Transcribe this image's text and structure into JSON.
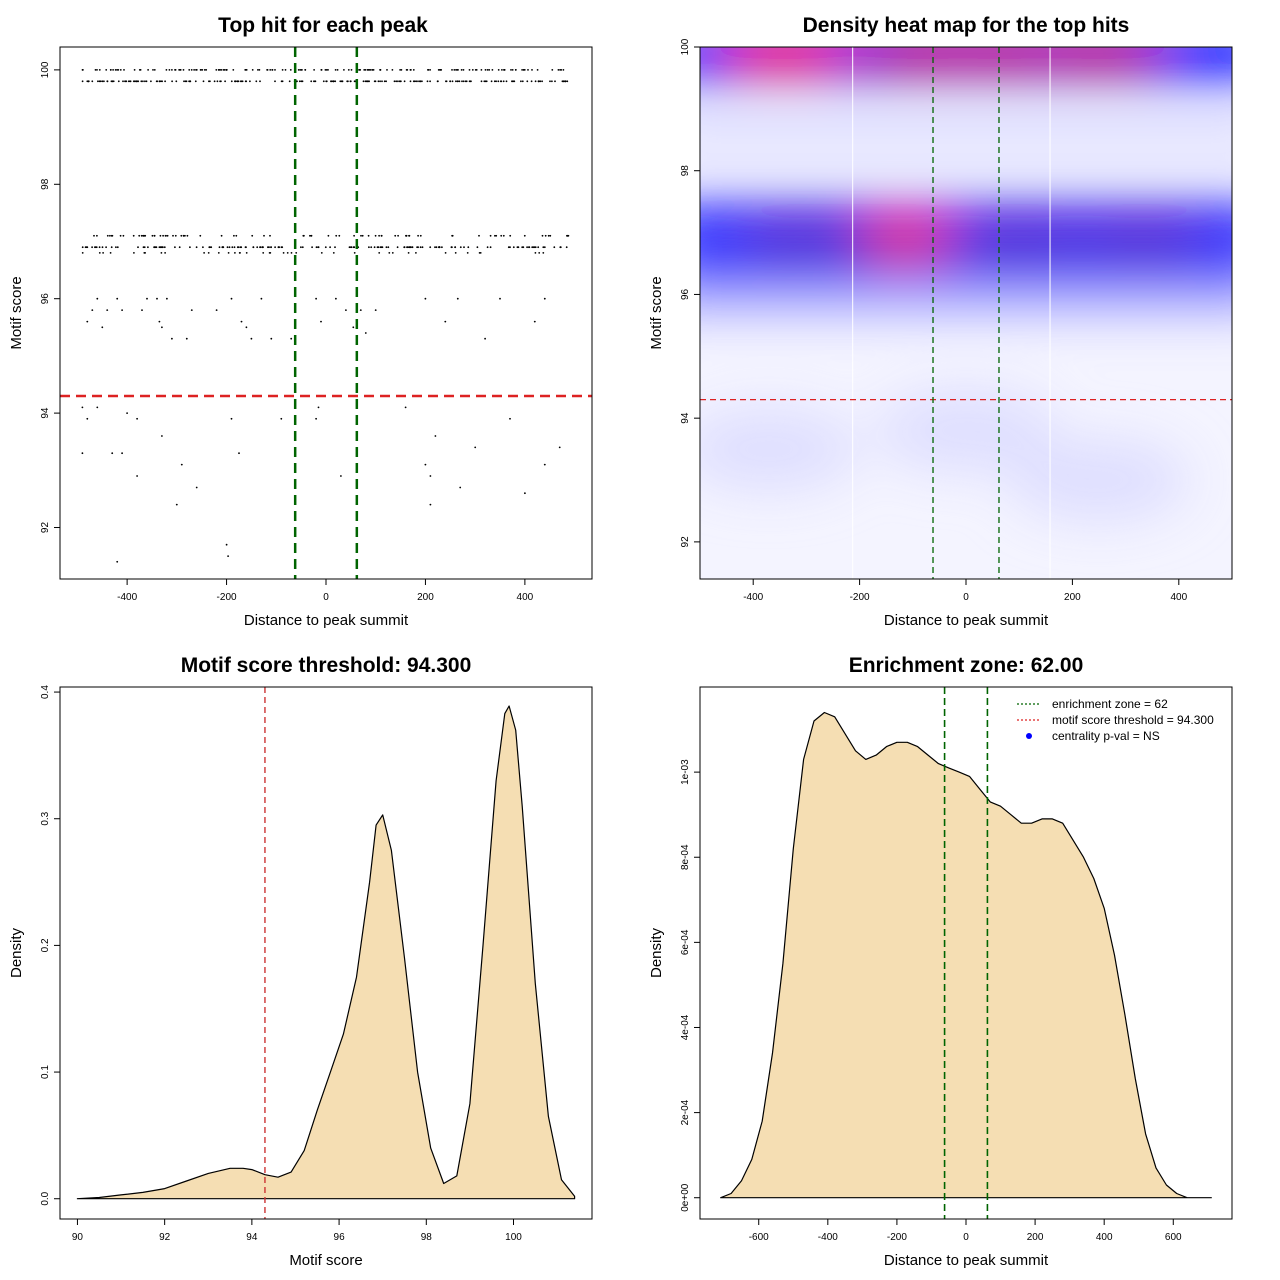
{
  "chart_data": [
    {
      "type": "scatter",
      "title": "Top hit for each peak",
      "xlabel": "Distance to peak summit",
      "ylabel": "Motif score",
      "xlim": [
        -535,
        535
      ],
      "ylim": [
        91.1,
        100.4
      ],
      "xticks": [
        -400,
        -200,
        0,
        200,
        400
      ],
      "yticks": [
        92,
        94,
        96,
        98,
        100
      ],
      "grid": false,
      "bands": [
        {
          "y": 100.0,
          "count": 150,
          "xmin": -490,
          "xmax": 480
        },
        {
          "y": 99.8,
          "count": 200,
          "xmin": -490,
          "xmax": 495
        },
        {
          "y": 97.1,
          "count": 80,
          "xmin": -470,
          "xmax": 490
        },
        {
          "y": 96.9,
          "count": 150,
          "xmin": -490,
          "xmax": 490
        },
        {
          "y": 96.8,
          "count": 40,
          "xmin": -490,
          "xmax": 500
        }
      ],
      "points": [
        {
          "x": -480,
          "y": 95.6
        },
        {
          "x": -470,
          "y": 95.8
        },
        {
          "x": -460,
          "y": 96.0
        },
        {
          "x": -450,
          "y": 95.5
        },
        {
          "x": -440,
          "y": 95.8
        },
        {
          "x": -420,
          "y": 96.0
        },
        {
          "x": -410,
          "y": 95.8
        },
        {
          "x": -370,
          "y": 95.8
        },
        {
          "x": -360,
          "y": 96.0
        },
        {
          "x": -340,
          "y": 96.0
        },
        {
          "x": -335,
          "y": 95.6
        },
        {
          "x": -330,
          "y": 95.5
        },
        {
          "x": -320,
          "y": 96.0
        },
        {
          "x": -310,
          "y": 95.3
        },
        {
          "x": -280,
          "y": 95.3
        },
        {
          "x": -270,
          "y": 95.8
        },
        {
          "x": -220,
          "y": 95.8
        },
        {
          "x": -190,
          "y": 96.0
        },
        {
          "x": -170,
          "y": 95.6
        },
        {
          "x": -160,
          "y": 95.5
        },
        {
          "x": -150,
          "y": 95.3
        },
        {
          "x": -130,
          "y": 96.0
        },
        {
          "x": -110,
          "y": 95.3
        },
        {
          "x": -70,
          "y": 95.3
        },
        {
          "x": -20,
          "y": 96.0
        },
        {
          "x": -10,
          "y": 95.6
        },
        {
          "x": 20,
          "y": 96.0
        },
        {
          "x": 40,
          "y": 95.8
        },
        {
          "x": 55,
          "y": 95.5
        },
        {
          "x": 70,
          "y": 95.8
        },
        {
          "x": 80,
          "y": 95.4
        },
        {
          "x": 100,
          "y": 95.8
        },
        {
          "x": 200,
          "y": 96.0
        },
        {
          "x": 240,
          "y": 95.6
        },
        {
          "x": 265,
          "y": 96.0
        },
        {
          "x": 320,
          "y": 95.3
        },
        {
          "x": 350,
          "y": 96.0
        },
        {
          "x": 420,
          "y": 95.6
        },
        {
          "x": 440,
          "y": 96.0
        },
        {
          "x": -490,
          "y": 94.1
        },
        {
          "x": -480,
          "y": 93.9
        },
        {
          "x": -460,
          "y": 94.1
        },
        {
          "x": -400,
          "y": 94.0
        },
        {
          "x": -380,
          "y": 93.9
        },
        {
          "x": -360,
          "y": 94.3
        },
        {
          "x": -330,
          "y": 93.6
        },
        {
          "x": -190,
          "y": 93.9
        },
        {
          "x": -90,
          "y": 93.9
        },
        {
          "x": -20,
          "y": 93.9
        },
        {
          "x": -15,
          "y": 94.1
        },
        {
          "x": 160,
          "y": 94.1
        },
        {
          "x": 370,
          "y": 93.9
        },
        {
          "x": 220,
          "y": 93.6
        },
        {
          "x": 300,
          "y": 93.4
        },
        {
          "x": 470,
          "y": 93.4
        },
        {
          "x": -490,
          "y": 93.3
        },
        {
          "x": -430,
          "y": 93.3
        },
        {
          "x": -410,
          "y": 93.3
        },
        {
          "x": -175,
          "y": 93.3
        },
        {
          "x": -290,
          "y": 93.1
        },
        {
          "x": -380,
          "y": 92.9
        },
        {
          "x": -260,
          "y": 92.7
        },
        {
          "x": -300,
          "y": 92.4
        },
        {
          "x": 30,
          "y": 92.9
        },
        {
          "x": 200,
          "y": 93.1
        },
        {
          "x": 210,
          "y": 92.9
        },
        {
          "x": 270,
          "y": 92.7
        },
        {
          "x": 210,
          "y": 92.4
        },
        {
          "x": 400,
          "y": 92.6
        },
        {
          "x": 440,
          "y": 93.1
        },
        {
          "x": -200,
          "y": 91.7
        },
        {
          "x": -197,
          "y": 91.5
        },
        {
          "x": -420,
          "y": 91.4
        }
      ],
      "hlines": [
        {
          "y": 94.3,
          "color": "#dd2222",
          "dash": "dashed"
        }
      ],
      "vlines": [
        {
          "x": -62,
          "color": "#006400",
          "dash": "dashed"
        },
        {
          "x": 62,
          "color": "#006400",
          "dash": "dashed"
        }
      ]
    },
    {
      "type": "heatmap",
      "title": "Density heat map for the top hits",
      "xlabel": "Distance to peak summit",
      "ylabel": "Motif score",
      "xlim": [
        -500,
        500
      ],
      "ylim": [
        91.4,
        100.0
      ],
      "xticks": [
        -400,
        -200,
        0,
        200,
        400
      ],
      "yticks": [
        92,
        94,
        96,
        98,
        100
      ],
      "colormap": [
        "#ffffff",
        "#0000ff",
        "#ff0000"
      ],
      "white_grid_x": [
        -213,
        158
      ],
      "density_peaks": [
        {
          "x": -340,
          "y": 99.9,
          "weight": 1.0
        },
        {
          "x": -80,
          "y": 99.9,
          "weight": 0.75
        },
        {
          "x": 70,
          "y": 99.9,
          "weight": 0.78
        },
        {
          "x": 250,
          "y": 99.9,
          "weight": 0.72
        },
        {
          "x": -130,
          "y": 96.9,
          "weight": 0.9
        },
        {
          "x": -300,
          "y": 96.9,
          "weight": 0.55
        },
        {
          "x": 100,
          "y": 96.9,
          "weight": 0.6
        },
        {
          "x": 330,
          "y": 96.9,
          "weight": 0.55
        },
        {
          "x": -370,
          "y": 93.5,
          "weight": 0.12
        },
        {
          "x": 250,
          "y": 93.0,
          "weight": 0.1
        },
        {
          "x": 0,
          "y": 93.8,
          "weight": 0.08
        }
      ],
      "hlines": [
        {
          "y": 94.3,
          "color": "#dd2222",
          "dash": "dashed"
        }
      ],
      "vlines": [
        {
          "x": -62,
          "color": "#006400",
          "dash": "dashed"
        },
        {
          "x": 62,
          "color": "#006400",
          "dash": "dashed"
        }
      ]
    },
    {
      "type": "area",
      "title": "Motif score threshold: 94.300",
      "xlabel": "Motif score",
      "ylabel": "Density",
      "xlim": [
        89.6,
        101.8
      ],
      "ylim": [
        -0.016,
        0.404
      ],
      "xticks": [
        90,
        92,
        94,
        96,
        98,
        100
      ],
      "yticks": [
        0.0,
        0.1,
        0.2,
        0.3,
        0.4
      ],
      "ytick_labels": [
        "0.0",
        "0.1",
        "0.2",
        "0.3",
        "0.4"
      ],
      "fill": "#f5deb3",
      "x": [
        90.0,
        90.5,
        91.0,
        91.5,
        92.0,
        92.5,
        93.0,
        93.5,
        93.8,
        94.0,
        94.3,
        94.6,
        94.9,
        95.2,
        95.5,
        95.8,
        96.1,
        96.4,
        96.7,
        96.85,
        97.0,
        97.2,
        97.5,
        97.8,
        98.1,
        98.4,
        98.7,
        99.0,
        99.3,
        99.6,
        99.8,
        99.9,
        100.05,
        100.2,
        100.5,
        100.8,
        101.1,
        101.4
      ],
      "y": [
        0.0,
        0.001,
        0.003,
        0.005,
        0.008,
        0.014,
        0.02,
        0.024,
        0.024,
        0.023,
        0.019,
        0.017,
        0.021,
        0.038,
        0.07,
        0.1,
        0.13,
        0.175,
        0.25,
        0.295,
        0.303,
        0.275,
        0.19,
        0.1,
        0.04,
        0.012,
        0.018,
        0.075,
        0.2,
        0.33,
        0.383,
        0.389,
        0.37,
        0.31,
        0.17,
        0.065,
        0.015,
        0.002
      ],
      "vlines": [
        {
          "x": 94.3,
          "color": "#cc3333",
          "dash": "dashed"
        }
      ]
    },
    {
      "type": "area",
      "title": "Enrichment zone: 62.00",
      "xlabel": "Distance to peak summit",
      "ylabel": "Density",
      "xlim": [
        -770,
        770
      ],
      "ylim": [
        -5e-05,
        0.0012
      ],
      "xticks": [
        -600,
        -400,
        -200,
        0,
        200,
        400,
        600
      ],
      "yticks": [
        0.0,
        0.0002,
        0.0004,
        0.0006,
        0.0008,
        0.001
      ],
      "ytick_labels": [
        "0e+00",
        "2e-04",
        "4e-04",
        "6e-04",
        "8e-04",
        "1e-03"
      ],
      "fill": "#f5deb3",
      "x": [
        -710,
        -680,
        -650,
        -620,
        -590,
        -560,
        -530,
        -500,
        -470,
        -440,
        -410,
        -380,
        -350,
        -320,
        -290,
        -260,
        -230,
        -200,
        -170,
        -140,
        -110,
        -80,
        -50,
        -20,
        10,
        40,
        70,
        100,
        130,
        160,
        190,
        220,
        250,
        280,
        310,
        340,
        370,
        400,
        430,
        460,
        490,
        520,
        550,
        580,
        610,
        640,
        670,
        700,
        710
      ],
      "y": [
        0.0,
        1e-05,
        4e-05,
        9e-05,
        0.00018,
        0.00034,
        0.00055,
        0.00082,
        0.00103,
        0.00112,
        0.00114,
        0.00113,
        0.00109,
        0.00105,
        0.00103,
        0.00104,
        0.00106,
        0.00107,
        0.00107,
        0.00106,
        0.00104,
        0.00102,
        0.00101,
        0.001,
        0.00099,
        0.00096,
        0.00093,
        0.00092,
        0.0009,
        0.00088,
        0.00088,
        0.00089,
        0.00089,
        0.00088,
        0.00084,
        0.0008,
        0.00075,
        0.00068,
        0.00057,
        0.00043,
        0.00028,
        0.00015,
        7e-05,
        3e-05,
        1e-05,
        0.0,
        0.0,
        0.0,
        0.0
      ],
      "vlines": [
        {
          "x": -62,
          "color": "#006400",
          "dash": "dashed"
        },
        {
          "x": 62,
          "color": "#006400",
          "dash": "dashed"
        }
      ],
      "legend": {
        "position": "top-right",
        "entries": [
          {
            "label": "enrichment zone = 62",
            "color": "#006400",
            "kind": "line"
          },
          {
            "label": "motif score threshold = 94.300",
            "color": "#dd2222",
            "kind": "line"
          },
          {
            "label": "centrality p-val = NS",
            "color": "#0000ff",
            "kind": "point"
          }
        ]
      }
    }
  ]
}
